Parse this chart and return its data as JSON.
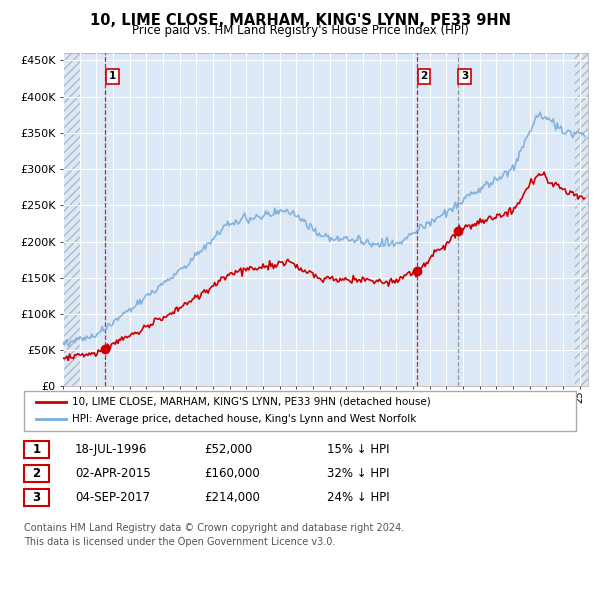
{
  "title": "10, LIME CLOSE, MARHAM, KING'S LYNN, PE33 9HN",
  "subtitle": "Price paid vs. HM Land Registry's House Price Index (HPI)",
  "xlim_start": 1994.0,
  "xlim_end": 2025.5,
  "ylim": [
    0,
    460000
  ],
  "yticks": [
    0,
    50000,
    100000,
    150000,
    200000,
    250000,
    300000,
    350000,
    400000,
    450000
  ],
  "ytick_labels": [
    "£0",
    "£50K",
    "£100K",
    "£150K",
    "£200K",
    "£250K",
    "£300K",
    "£350K",
    "£400K",
    "£450K"
  ],
  "sale_dates": [
    1996.54,
    2015.25,
    2017.67
  ],
  "sale_prices": [
    52000,
    160000,
    214000
  ],
  "sale_labels": [
    "1",
    "2",
    "3"
  ],
  "sale_vline_styles": [
    "red_dashed",
    "red_dashed",
    "gray_dashed"
  ],
  "sale_date_strs": [
    "18-JUL-1996",
    "02-APR-2015",
    "04-SEP-2017"
  ],
  "sale_price_strs": [
    "£52,000",
    "£160,000",
    "£214,000"
  ],
  "sale_hpi_strs": [
    "15% ↓ HPI",
    "32% ↓ HPI",
    "24% ↓ HPI"
  ],
  "hpi_color": "#7aacdc",
  "sale_color": "#cc0000",
  "bg_color": "#dce8f5",
  "legend_label_sale": "10, LIME CLOSE, MARHAM, KING'S LYNN, PE33 9HN (detached house)",
  "legend_label_hpi": "HPI: Average price, detached house, King's Lynn and West Norfolk",
  "footer1": "Contains HM Land Registry data © Crown copyright and database right 2024.",
  "footer2": "This data is licensed under the Open Government Licence v3.0."
}
